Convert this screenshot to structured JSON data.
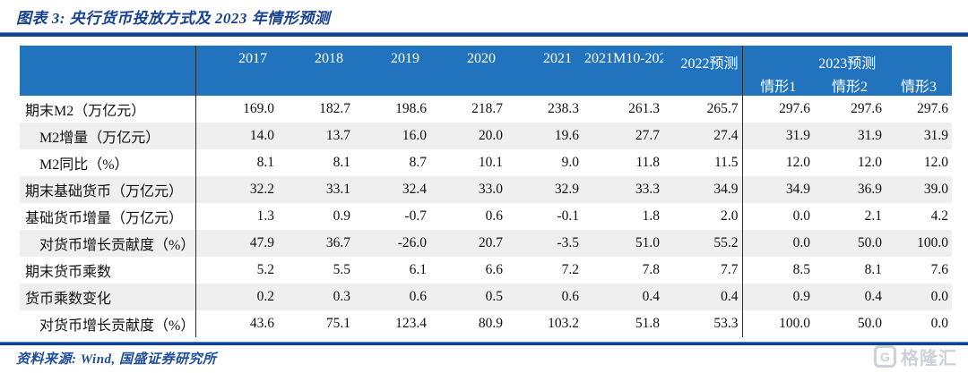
{
  "title": "图表 3:  央行货币投放方式及 2023 年情形预测",
  "table": {
    "col_headers": [
      "2017",
      "2018",
      "2019",
      "2020",
      "2021",
      "2021M10-202",
      "2022预测"
    ],
    "group_header": "2023预测",
    "scenario_headers": [
      "情形1",
      "情形2",
      "情形3"
    ],
    "rows": [
      {
        "label": "期末M2（万亿元）",
        "indent": false,
        "values": [
          "169.0",
          "182.7",
          "198.6",
          "218.7",
          "238.3",
          "261.3",
          "265.7",
          "297.6",
          "297.6",
          "297.6"
        ]
      },
      {
        "label": "M2增量（万亿元）",
        "indent": true,
        "values": [
          "14.0",
          "13.7",
          "16.0",
          "20.0",
          "19.6",
          "27.7",
          "27.4",
          "31.9",
          "31.9",
          "31.9"
        ]
      },
      {
        "label": "M2同比（%）",
        "indent": true,
        "values": [
          "8.1",
          "8.1",
          "8.7",
          "10.1",
          "9.0",
          "11.8",
          "11.5",
          "12.0",
          "12.0",
          "12.0"
        ]
      },
      {
        "label": "期末基础货币（万亿元）",
        "indent": false,
        "values": [
          "32.2",
          "33.1",
          "32.4",
          "33.0",
          "32.9",
          "33.3",
          "34.9",
          "34.9",
          "36.9",
          "39.0"
        ]
      },
      {
        "label": "基础货币增量（万亿元）",
        "indent": false,
        "values": [
          "1.3",
          "0.9",
          "-0.7",
          "0.6",
          "-0.1",
          "1.8",
          "2.0",
          "0.0",
          "2.1",
          "4.2"
        ]
      },
      {
        "label": "对货币增长贡献度（%）",
        "indent": true,
        "values": [
          "47.9",
          "36.7",
          "-26.0",
          "20.7",
          "-3.5",
          "51.0",
          "55.2",
          "0.0",
          "50.0",
          "100.0"
        ]
      },
      {
        "label": "期末货币乘数",
        "indent": false,
        "values": [
          "5.2",
          "5.5",
          "6.1",
          "6.6",
          "7.2",
          "7.8",
          "7.7",
          "8.5",
          "8.1",
          "7.6"
        ]
      },
      {
        "label": "货币乘数变化",
        "indent": false,
        "values": [
          "0.2",
          "0.3",
          "0.6",
          "0.5",
          "0.6",
          "0.4",
          "0.4",
          "0.9",
          "0.4",
          "0.0"
        ]
      },
      {
        "label": "对货币增长贡献度（%）",
        "indent": true,
        "values": [
          "43.6",
          "75.1",
          "123.4",
          "80.9",
          "103.2",
          "51.8",
          "53.3",
          "100.0",
          "50.0",
          "0.0"
        ]
      }
    ]
  },
  "footer": {
    "source": "资料来源: Wind, 国盛证券研究所"
  },
  "watermark": {
    "logo_glyph": "G",
    "logo_text": "格隆汇"
  },
  "colors": {
    "header_blue": "#2173BE",
    "stripe_gray": "#EFEFEF",
    "title_navy": "#17418F",
    "rule_blue": "#12418F",
    "source_blue": "#1F4E9C",
    "divider_dark": "#2b2b2b",
    "watermark_gray": "#CDD1D8"
  }
}
